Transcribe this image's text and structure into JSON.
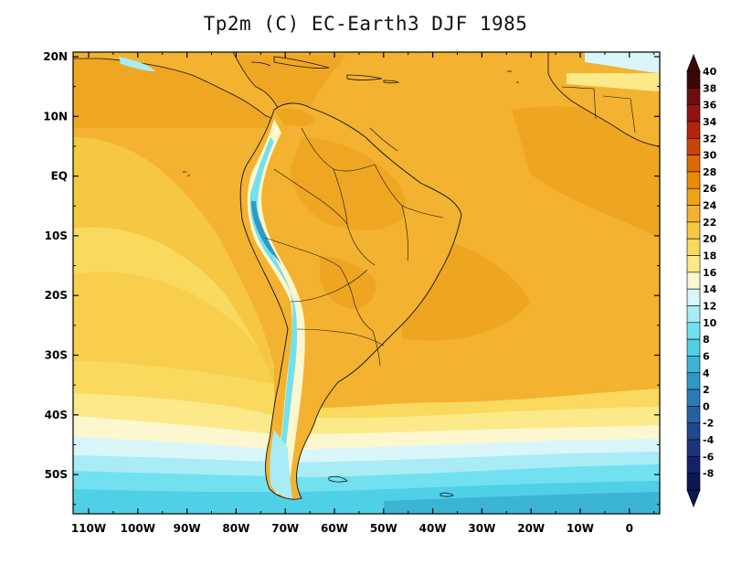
{
  "title": "Tp2m (C)  EC-Earth3 DJF 1985",
  "lon_labels": [
    "110W",
    "100W",
    "90W",
    "80W",
    "70W",
    "60W",
    "50W",
    "40W",
    "30W",
    "20W",
    "10W",
    "0"
  ],
  "lat_labels": [
    "20N",
    "10N",
    "EQ",
    "10S",
    "20S",
    "30S",
    "40S",
    "50S"
  ],
  "colorbar": {
    "labels": [
      "40",
      "38",
      "36",
      "34",
      "32",
      "30",
      "28",
      "26",
      "24",
      "22",
      "20",
      "18",
      "16",
      "14",
      "12",
      "10",
      "8",
      "6",
      "4",
      "2",
      "0",
      "-2",
      "-4",
      "-6",
      "-8"
    ],
    "colors": [
      "#3d0707",
      "#6e0c12",
      "#931313",
      "#b5230f",
      "#cb4407",
      "#de6a05",
      "#eb8c05",
      "#f2a31a",
      "#f3b22f",
      "#f6c743",
      "#f9da5e",
      "#fbe98a",
      "#fdf7cf",
      "#d9f6fb",
      "#a9ecf6",
      "#71e1f0",
      "#4fd0e6",
      "#3cb5d4",
      "#2f99c6",
      "#2a7cb4",
      "#2660a1",
      "#21488d",
      "#1b347b",
      "#13236a",
      "#0b1657"
    ]
  },
  "legend_colors": {
    "ocean_base": "#f3b22f",
    "warm_ocean": "#eb9f1a",
    "cool_ocean": "#f9da5e",
    "mild": "#fbe98a",
    "pale": "#fdf7cf",
    "cyan_light": "#a9ecf6",
    "cyan": "#71e1f0",
    "teal": "#4fd0e6",
    "deep": "#3cb5d4"
  }
}
